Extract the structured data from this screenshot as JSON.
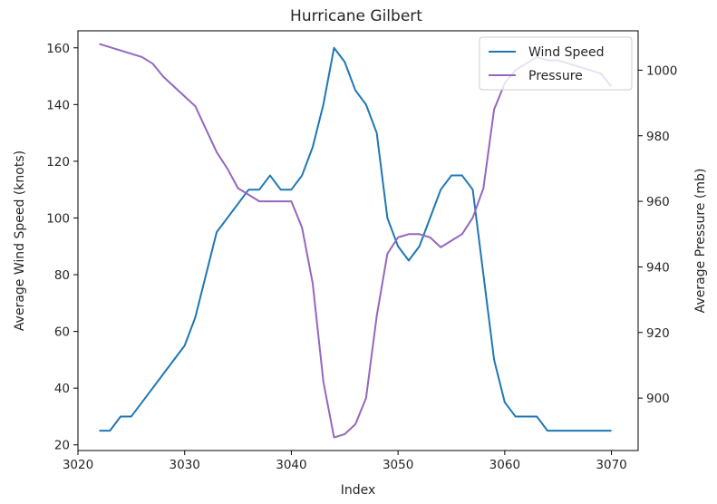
{
  "chart_data": {
    "type": "line",
    "title": "Hurricane Gilbert",
    "xlabel": "Index",
    "ylabel_left": "Average Wind Speed (knots)",
    "ylabel_right": "Average Pressure (mb)",
    "xlim": [
      3020,
      3072.5
    ],
    "ylim_left": [
      18,
      166
    ],
    "ylim_right": [
      884,
      1012
    ],
    "x_ticks": [
      3020,
      3030,
      3040,
      3050,
      3060,
      3070
    ],
    "y_left_ticks": [
      20,
      40,
      60,
      80,
      100,
      120,
      140,
      160
    ],
    "y_right_ticks": [
      900,
      920,
      940,
      960,
      980,
      1000
    ],
    "legend_position": "top-right",
    "grid": false,
    "x": [
      3022,
      3023,
      3024,
      3025,
      3026,
      3027,
      3028,
      3029,
      3030,
      3031,
      3032,
      3033,
      3034,
      3035,
      3036,
      3037,
      3038,
      3039,
      3040,
      3041,
      3042,
      3043,
      3044,
      3045,
      3046,
      3047,
      3048,
      3049,
      3050,
      3051,
      3052,
      3053,
      3054,
      3055,
      3056,
      3057,
      3058,
      3059,
      3060,
      3061,
      3062,
      3063,
      3064,
      3065,
      3066,
      3067,
      3068,
      3069,
      3070
    ],
    "series": [
      {
        "name": "Wind Speed",
        "axis": "left",
        "color": "#1f77b4",
        "values": [
          25,
          25,
          30,
          30,
          35,
          40,
          45,
          50,
          55,
          65,
          80,
          95,
          100,
          105,
          110,
          110,
          115,
          110,
          110,
          115,
          125,
          140,
          160,
          155,
          145,
          140,
          130,
          100,
          90,
          85,
          90,
          100,
          110,
          115,
          115,
          110,
          80,
          50,
          35,
          30,
          30,
          30,
          25,
          25,
          25,
          25,
          25,
          25,
          25
        ]
      },
      {
        "name": "Pressure",
        "axis": "right",
        "color": "#9467bd",
        "values": [
          1008,
          1007,
          1006,
          1005,
          1004,
          1002,
          998,
          995,
          992,
          989,
          982,
          975,
          970,
          964,
          962,
          960,
          960,
          960,
          960,
          952,
          935,
          905,
          888,
          889,
          892,
          900,
          925,
          944,
          949,
          950,
          950,
          949,
          946,
          948,
          950,
          955,
          964,
          988,
          996,
          1000,
          1002,
          1004,
          1003,
          1003,
          1002,
          1001,
          1000,
          999,
          995
        ]
      }
    ]
  }
}
